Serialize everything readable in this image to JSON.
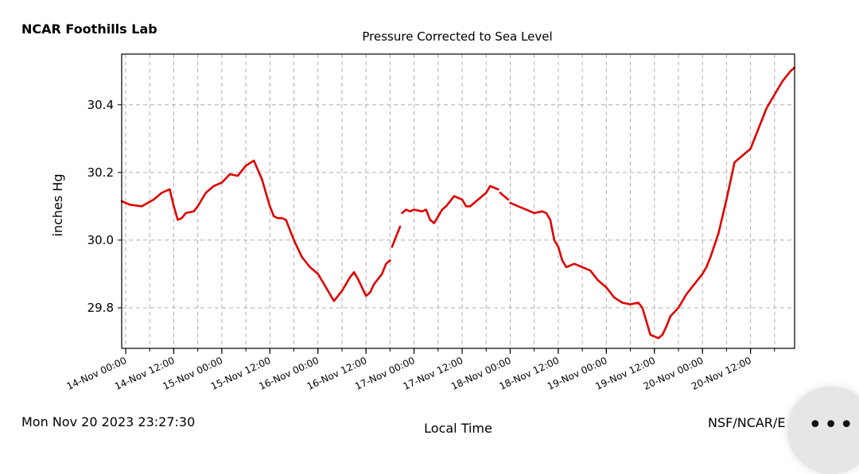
{
  "header": {
    "station": "NCAR Foothills Lab"
  },
  "footer": {
    "timestamp": "Mon Nov 20 2023 23:27:30",
    "credit": "NSF/NCAR/E"
  },
  "more_button": {
    "label": "•••"
  },
  "colors": {
    "series": "#e00000",
    "grid": "#b0b0b0",
    "axis": "#000000"
  },
  "chart_data": {
    "type": "line",
    "title": "Pressure Corrected to Sea Level",
    "xlabel": "Local Time",
    "ylabel": "inches Hg",
    "x_unit": "hours since 14-Nov 00:00",
    "xlim": [
      -1,
      167
    ],
    "ylim": [
      29.68,
      30.55
    ],
    "grid": true,
    "yticks": [
      29.8,
      30.0,
      30.2,
      30.4
    ],
    "ytick_labels": [
      "29.8",
      "30.0",
      "30.2",
      "30.4"
    ],
    "xticks": [
      0,
      12,
      24,
      36,
      48,
      60,
      72,
      84,
      96,
      108,
      120,
      132,
      144,
      156
    ],
    "xtick_labels": [
      "14-Nov 00:00",
      "14-Nov 12:00",
      "15-Nov 00:00",
      "15-Nov 12:00",
      "16-Nov 00:00",
      "16-Nov 12:00",
      "17-Nov 00:00",
      "17-Nov 12:00",
      "18-Nov 00:00",
      "18-Nov 12:00",
      "19-Nov 00:00",
      "19-Nov 12:00",
      "20-Nov 00:00",
      "20-Nov 12:00"
    ],
    "series": [
      {
        "name": "Pressure",
        "segments": [
          {
            "x": [
              -1,
              1,
              4,
              7,
              9,
              10,
              11,
              12,
              13,
              14,
              15,
              17,
              18,
              19,
              20,
              22,
              24,
              26,
              28,
              30,
              32,
              34,
              36,
              37,
              38,
              39,
              40,
              42,
              44,
              46,
              48,
              50,
              52,
              54,
              56,
              57,
              58,
              59,
              60,
              61,
              62,
              63,
              64,
              65,
              66
            ],
            "y": [
              30.115,
              30.105,
              30.1,
              30.12,
              30.14,
              30.145,
              30.15,
              30.1,
              30.06,
              30.065,
              30.08,
              30.085,
              30.1,
              30.12,
              30.14,
              30.16,
              30.17,
              30.195,
              30.19,
              30.22,
              30.235,
              30.18,
              30.1,
              30.07,
              30.065,
              30.065,
              30.06,
              30.0,
              29.95,
              29.92,
              29.9,
              29.86,
              29.82,
              29.85,
              29.89,
              29.905,
              29.885,
              29.86,
              29.835,
              29.845,
              29.87,
              29.885,
              29.9,
              29.93,
              29.94
            ]
          },
          {
            "x": [
              66.5,
              67.5,
              68.5
            ],
            "y": [
              29.98,
              30.01,
              30.04
            ]
          },
          {
            "x": [
              69,
              70,
              71,
              72,
              74,
              75,
              76,
              77,
              78,
              79,
              80,
              82,
              84,
              85,
              86,
              88,
              90,
              91,
              92,
              93
            ],
            "y": [
              30.08,
              30.09,
              30.085,
              30.09,
              30.085,
              30.09,
              30.06,
              30.05,
              30.07,
              30.09,
              30.1,
              30.13,
              30.12,
              30.1,
              30.1,
              30.12,
              30.14,
              30.16,
              30.155,
              30.15
            ]
          },
          {
            "x": [
              93.5,
              94.5,
              95.5
            ],
            "y": [
              30.14,
              30.13,
              30.12
            ]
          },
          {
            "x": [
              96,
              98,
              100,
              102,
              104,
              105,
              106,
              107,
              108,
              109,
              110,
              112,
              114,
              116,
              118,
              120,
              122,
              124,
              126,
              128,
              129,
              130,
              131,
              132,
              133,
              134,
              135,
              136,
              138,
              140,
              142,
              144,
              145,
              146,
              148,
              150,
              152,
              154,
              156,
              158,
              160,
              162,
              164,
              166,
              167
            ],
            "y": [
              30.11,
              30.1,
              30.09,
              30.08,
              30.085,
              30.08,
              30.06,
              30.0,
              29.98,
              29.94,
              29.92,
              29.93,
              29.92,
              29.91,
              29.88,
              29.86,
              29.83,
              29.815,
              29.81,
              29.815,
              29.8,
              29.76,
              29.72,
              29.715,
              29.71,
              29.72,
              29.745,
              29.775,
              29.8,
              29.84,
              29.87,
              29.9,
              29.92,
              29.95,
              30.02,
              30.12,
              30.23,
              30.25,
              30.27,
              30.33,
              30.39,
              30.43,
              30.47,
              30.5,
              30.51
            ]
          }
        ]
      }
    ]
  }
}
